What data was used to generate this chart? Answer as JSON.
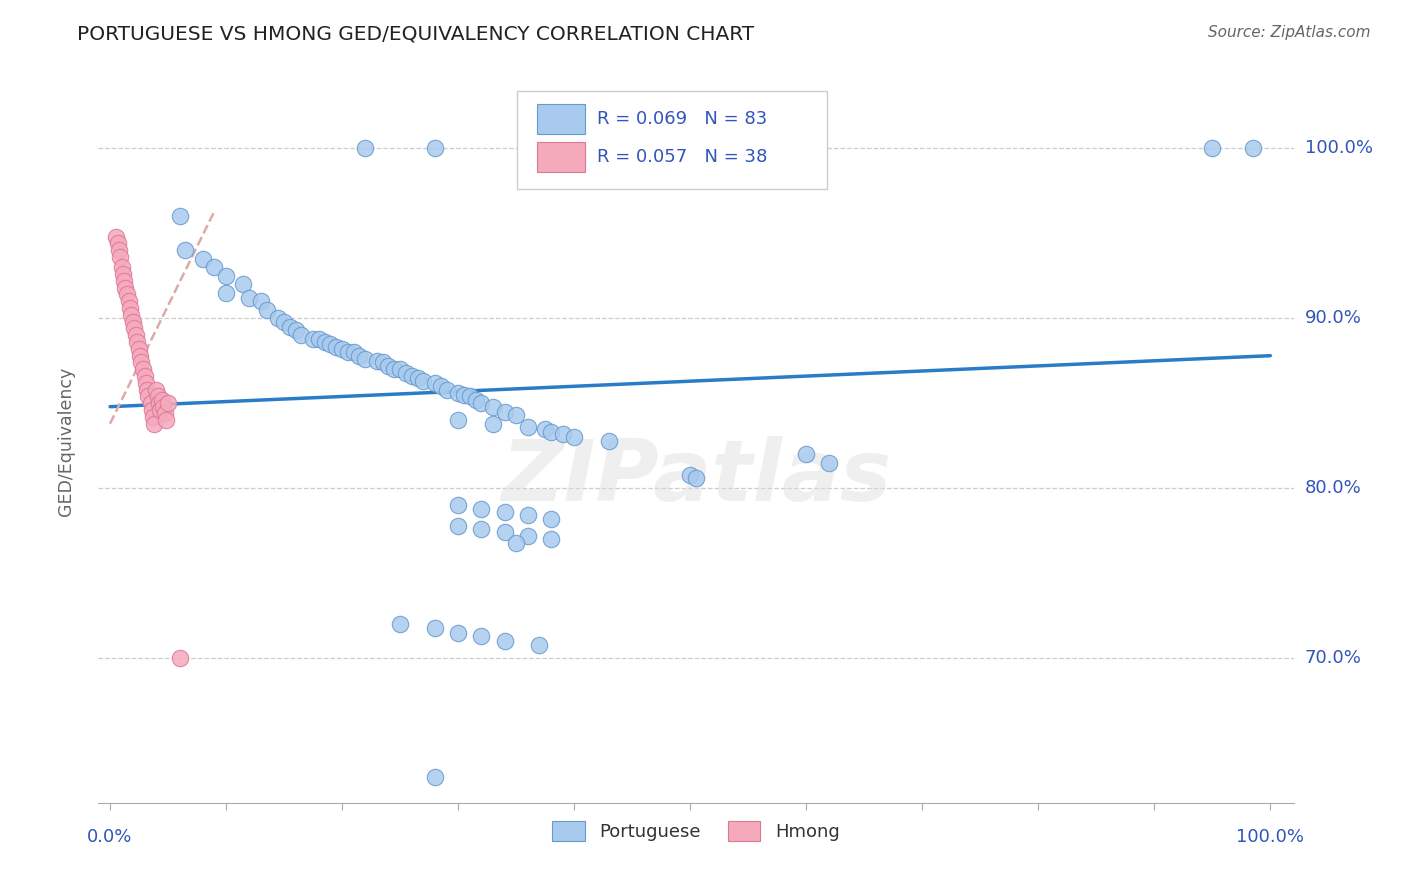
{
  "title": "PORTUGUESE VS HMONG GED/EQUIVALENCY CORRELATION CHART",
  "source": "Source: ZipAtlas.com",
  "ylabel": "GED/Equivalency",
  "blue_R": "R = 0.069",
  "blue_N": "N = 83",
  "pink_R": "R = 0.057",
  "pink_N": "N = 38",
  "blue_fill": "#A8CAEE",
  "blue_edge": "#6699CC",
  "pink_fill": "#F5AABC",
  "pink_edge": "#DD7799",
  "trend_blue": "#2B7CC7",
  "trend_pink": "#DDAAAA",
  "label_color": "#3355BB",
  "title_color": "#222222",
  "source_color": "#666666",
  "grid_color": "#CCCCCC",
  "watermark": "ZIPatlas",
  "watermark_color": "#DDDDDD",
  "ytick_vals": [
    0.7,
    0.8,
    0.9,
    1.0
  ],
  "ytick_labels": [
    "70.0%",
    "80.0%",
    "90.0%",
    "100.0%"
  ],
  "xlim": [
    -0.01,
    1.02
  ],
  "ylim": [
    0.615,
    1.04
  ],
  "blue_trend_x": [
    0.0,
    1.0
  ],
  "blue_trend_y": [
    0.848,
    0.878
  ],
  "pink_trend_x": [
    0.0,
    0.09
  ],
  "pink_trend_y": [
    0.838,
    0.963
  ],
  "port_x": [
    0.22,
    0.28,
    0.4,
    0.57,
    0.95,
    0.985,
    0.06,
    0.065,
    0.08,
    0.09,
    0.1,
    0.1,
    0.115,
    0.12,
    0.13,
    0.135,
    0.145,
    0.15,
    0.155,
    0.16,
    0.165,
    0.175,
    0.18,
    0.185,
    0.19,
    0.195,
    0.2,
    0.205,
    0.21,
    0.215,
    0.22,
    0.23,
    0.235,
    0.24,
    0.245,
    0.25,
    0.255,
    0.26,
    0.265,
    0.27,
    0.28,
    0.285,
    0.29,
    0.3,
    0.305,
    0.31,
    0.315,
    0.32,
    0.33,
    0.34,
    0.35,
    0.3,
    0.33,
    0.36,
    0.375,
    0.38,
    0.39,
    0.4,
    0.43,
    0.5,
    0.505,
    0.6,
    0.62,
    0.3,
    0.32,
    0.34,
    0.36,
    0.38,
    0.3,
    0.32,
    0.34,
    0.36,
    0.38,
    0.35,
    0.25,
    0.28,
    0.3,
    0.32,
    0.34,
    0.37,
    0.28
  ],
  "port_y": [
    1.0,
    1.0,
    1.0,
    1.0,
    1.0,
    1.0,
    0.96,
    0.94,
    0.935,
    0.93,
    0.925,
    0.915,
    0.92,
    0.912,
    0.91,
    0.905,
    0.9,
    0.898,
    0.895,
    0.893,
    0.89,
    0.888,
    0.888,
    0.886,
    0.885,
    0.883,
    0.882,
    0.88,
    0.88,
    0.878,
    0.876,
    0.875,
    0.874,
    0.872,
    0.87,
    0.87,
    0.868,
    0.866,
    0.865,
    0.863,
    0.862,
    0.86,
    0.858,
    0.856,
    0.855,
    0.854,
    0.852,
    0.85,
    0.848,
    0.845,
    0.843,
    0.84,
    0.838,
    0.836,
    0.835,
    0.833,
    0.832,
    0.83,
    0.828,
    0.808,
    0.806,
    0.82,
    0.815,
    0.79,
    0.788,
    0.786,
    0.784,
    0.782,
    0.778,
    0.776,
    0.774,
    0.772,
    0.77,
    0.768,
    0.72,
    0.718,
    0.715,
    0.713,
    0.71,
    0.708,
    0.63
  ],
  "hmong_x": [
    0.005,
    0.007,
    0.008,
    0.009,
    0.01,
    0.011,
    0.012,
    0.013,
    0.015,
    0.016,
    0.017,
    0.018,
    0.02,
    0.021,
    0.022,
    0.023,
    0.025,
    0.026,
    0.027,
    0.028,
    0.03,
    0.031,
    0.032,
    0.033,
    0.035,
    0.036,
    0.037,
    0.038,
    0.04,
    0.041,
    0.042,
    0.043,
    0.045,
    0.046,
    0.047,
    0.048,
    0.05,
    0.06
  ],
  "hmong_y": [
    0.948,
    0.944,
    0.94,
    0.936,
    0.93,
    0.926,
    0.922,
    0.918,
    0.914,
    0.91,
    0.906,
    0.902,
    0.898,
    0.894,
    0.89,
    0.886,
    0.882,
    0.878,
    0.874,
    0.87,
    0.866,
    0.862,
    0.858,
    0.854,
    0.85,
    0.846,
    0.842,
    0.838,
    0.858,
    0.854,
    0.85,
    0.846,
    0.852,
    0.848,
    0.844,
    0.84,
    0.85,
    0.7
  ]
}
